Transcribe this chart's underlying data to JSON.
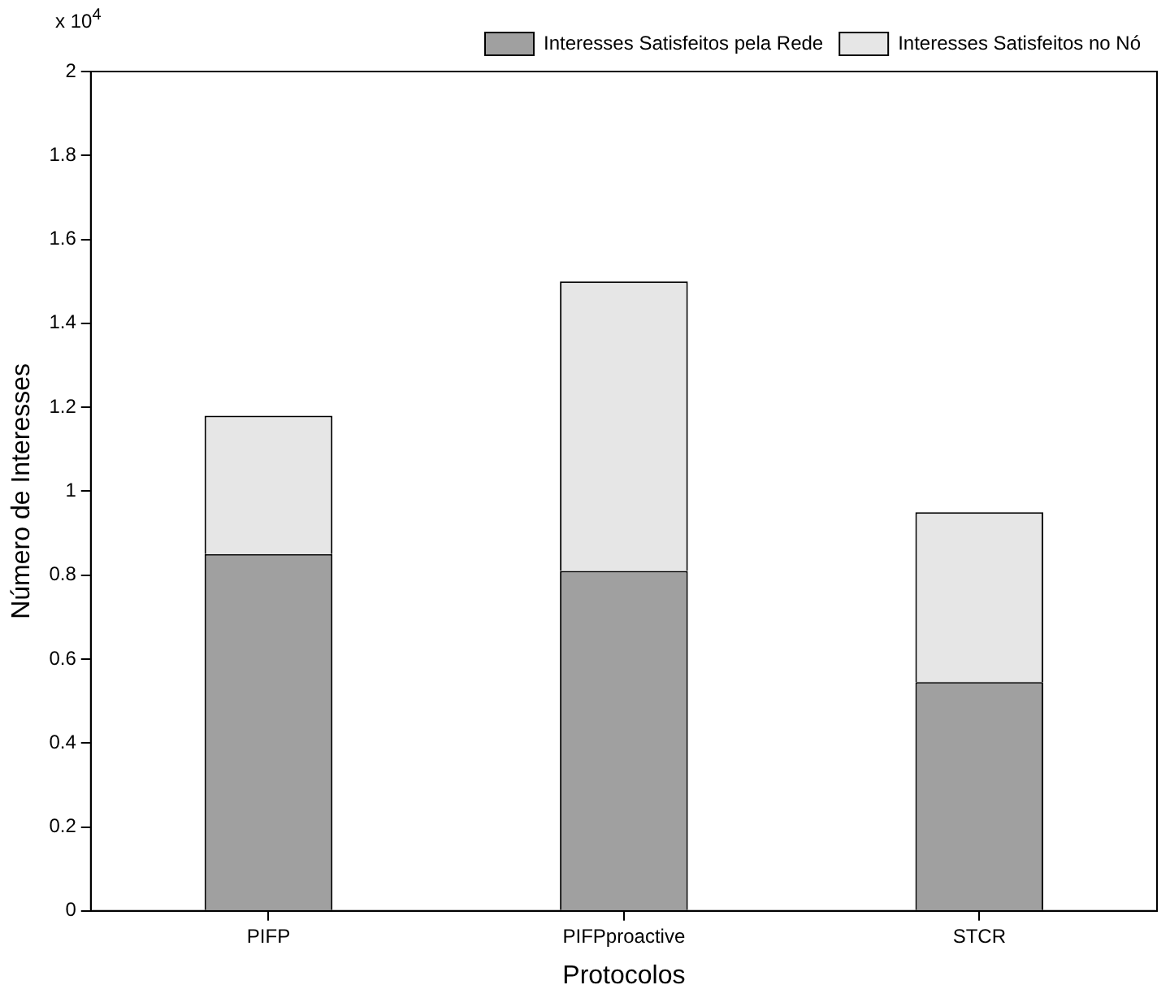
{
  "chart_data": {
    "type": "bar",
    "stacked": true,
    "xlabel": "Protocolos",
    "ylabel": "Número de Interesses",
    "annotations": [
      "x 10$^{4}$"
    ],
    "categories": [
      "PIFP",
      "PIFPproactive",
      "STCR"
    ],
    "series": [
      {
        "name": "Interesses Satisfeitos pela Rede",
        "color": "#a0a0a0",
        "values": [
          0.85,
          0.81,
          0.545
        ]
      },
      {
        "name": "Interesses Satisfeitos no Nó",
        "color": "#e6e6e6",
        "values": [
          0.33,
          0.69,
          0.405
        ]
      }
    ],
    "ylim": [
      0,
      2
    ],
    "yticks": [
      0,
      0.2,
      0.4,
      0.6,
      0.8,
      1,
      1.2,
      1.4,
      1.6,
      1.8,
      2
    ],
    "grid": false,
    "legend": "top right"
  }
}
